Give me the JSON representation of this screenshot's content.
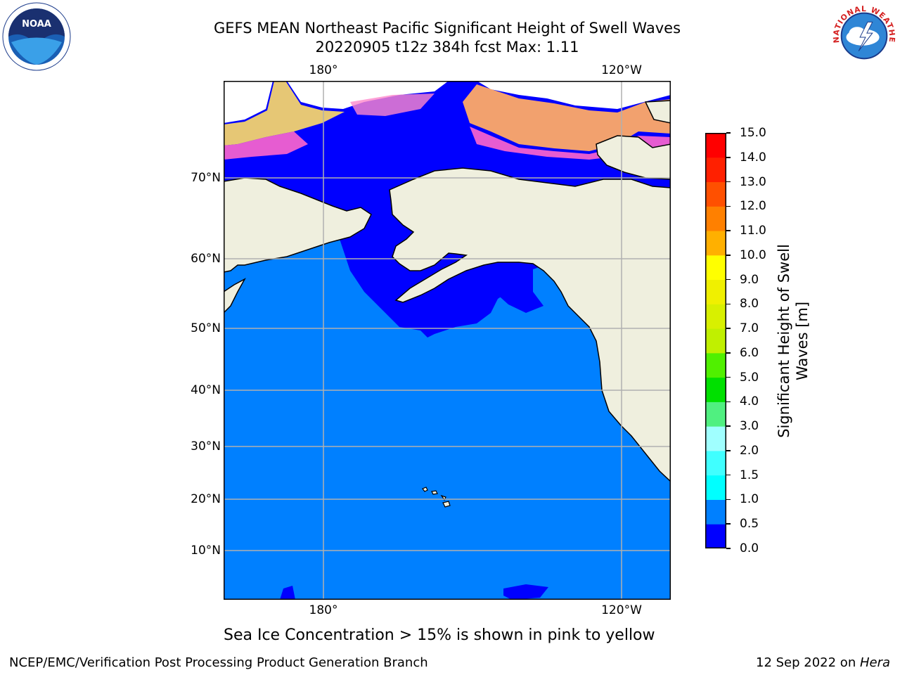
{
  "title": {
    "line1": "GEFS MEAN Northeast Pacific Significant Height of Swell Waves",
    "line2": "20220905 t12z 384h fcst   Max: 1.11"
  },
  "logos": {
    "left": {
      "name": "noaa-logo",
      "text": "NOAA"
    },
    "right": {
      "name": "national-weather-service-logo",
      "text": "NATIONAL WEATHER SERVICE"
    }
  },
  "map": {
    "lon_labels": [
      "180°",
      "120°W"
    ],
    "lat_labels": [
      "70°N",
      "60°N",
      "50°N",
      "40°N",
      "30°N",
      "20°N",
      "10°N"
    ],
    "colors": {
      "ocean_low": "#0000ff",
      "ocean_mid": "#0080ff",
      "land": "#efefde",
      "ice_white": "#ffffff",
      "ice_pink": "#ff66cc",
      "ice_orange": "#ffaa66",
      "ice_yellow": "#ffdd66",
      "gridline": "#b0b0b0"
    }
  },
  "colorbar": {
    "label_line1": "Significant Height of Swell",
    "label_line2": "Waves [m]",
    "ticks": [
      "0.0",
      "0.5",
      "1.0",
      "1.5",
      "2.0",
      "3.0",
      "4.0",
      "5.0",
      "6.0",
      "7.0",
      "8.0",
      "9.0",
      "10.0",
      "11.0",
      "12.0",
      "13.0",
      "14.0",
      "15.0"
    ],
    "colors": [
      "#0000ff",
      "#0080ff",
      "#00ffff",
      "#40ffff",
      "#a0ffff",
      "#50f080",
      "#00e000",
      "#50f000",
      "#c0f000",
      "#d8f000",
      "#f0f000",
      "#ffff00",
      "#ffb000",
      "#ff8000",
      "#ff5000",
      "#ff2000",
      "#ff0000"
    ]
  },
  "caption": "Sea Ice Concentration > 15% is shown in pink to yellow",
  "footer": {
    "left": "NCEP/EMC/Verification Post Processing Product Generation Branch",
    "right_prefix": "12 Sep 2022 on ",
    "right_italic": "Hera"
  }
}
